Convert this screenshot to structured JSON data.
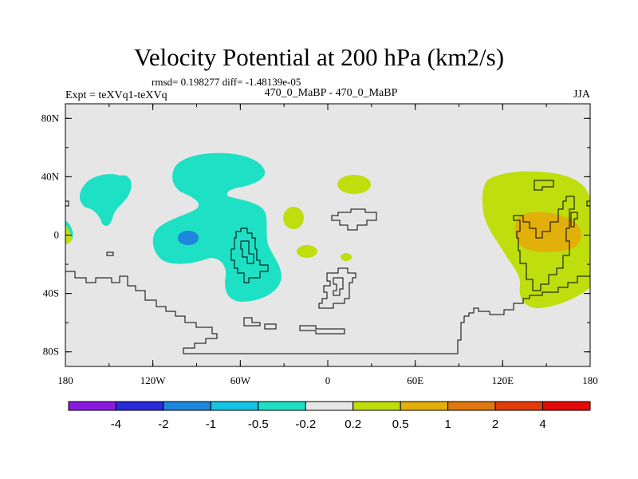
{
  "header": {
    "title": "Velocity Potential at 200 hPa (km2/s)",
    "stats": "rmsd= 0.198277 diff= -1.48139e-05",
    "experiment": "Expt = teXVq1-teXVq",
    "cases": "470_0_MaBP - 470_0_MaBP",
    "season": "JJA"
  },
  "chart_data": {
    "type": "contour-map",
    "title": "Velocity Potential at 200 hPa (km2/s)",
    "units": "km2/s",
    "level_hPa": 200,
    "season": "JJA",
    "xlim": [
      -180,
      180
    ],
    "ylim": [
      -90,
      90
    ],
    "x_ticks": [
      {
        "value": -180,
        "label": "180"
      },
      {
        "value": -120,
        "label": "120W"
      },
      {
        "value": -60,
        "label": "60W"
      },
      {
        "value": 0,
        "label": "0"
      },
      {
        "value": 60,
        "label": "60E"
      },
      {
        "value": 120,
        "label": "120E"
      },
      {
        "value": 180,
        "label": "180"
      }
    ],
    "y_ticks": [
      {
        "value": 80,
        "label": "80N"
      },
      {
        "value": 40,
        "label": "40N"
      },
      {
        "value": 0,
        "label": "0"
      },
      {
        "value": -40,
        "label": "40S"
      },
      {
        "value": -80,
        "label": "80S"
      }
    ],
    "colorbar": {
      "levels": [
        "-4",
        "-2",
        "-1",
        "-0.5",
        "-0.2",
        "0.2",
        "0.5",
        "1",
        "2",
        "4"
      ],
      "colors": [
        "#8a1ae0",
        "#2a2ad6",
        "#1e86dc",
        "#16c4e4",
        "#1ee0c4",
        "#e6e6e6",
        "#bede0e",
        "#e2b00a",
        "#e07810",
        "#e03c0a",
        "#e40a0a"
      ]
    },
    "regions": [
      {
        "name": "western-hemisphere-negative",
        "lon_range": [
          -175,
          -30
        ],
        "lat_range": [
          -50,
          55
        ],
        "range": "-0.5 to -0.2"
      },
      {
        "name": "central-pacific-negative-core",
        "lon_range": [
          -100,
          -90
        ],
        "lat_range": [
          -6,
          4
        ],
        "range": "-1 to -0.5"
      },
      {
        "name": "eastern-hemisphere-positive",
        "lon_range": [
          108,
          180
        ],
        "lat_range": [
          -50,
          45
        ],
        "range": "0.2 to 0.5"
      },
      {
        "name": "eastern-hemisphere-positive-core",
        "lon_range": [
          130,
          175
        ],
        "lat_range": [
          -10,
          12
        ],
        "range": "0.5 to 1"
      },
      {
        "name": "atlantic-positive-spots",
        "lon_range": [
          -30,
          30
        ],
        "lat_range": [
          -20,
          43
        ],
        "range": "0.2 to 0.5"
      }
    ]
  }
}
